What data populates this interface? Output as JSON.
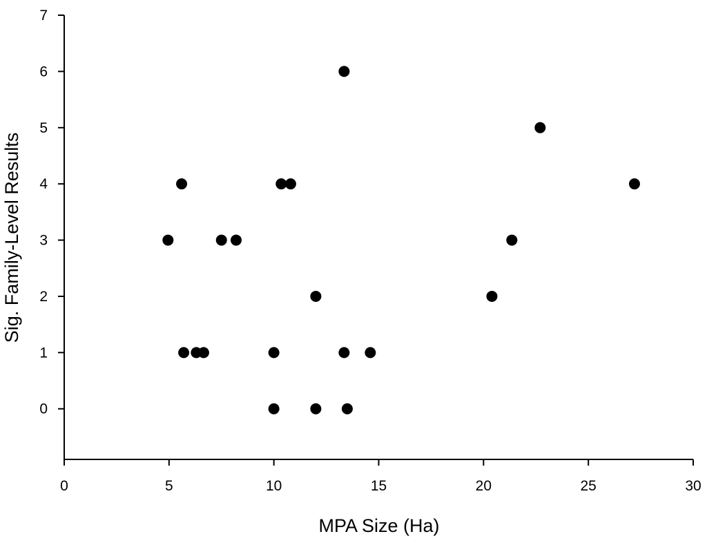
{
  "chart_data": {
    "type": "scatter",
    "title": "",
    "xlabel": "MPA Size (Ha)",
    "ylabel": "Sig. Family-Level Results",
    "xlim": [
      0,
      30
    ],
    "ylim": [
      -0.9,
      7
    ],
    "xticks": [
      0,
      5,
      10,
      15,
      20,
      25,
      30
    ],
    "yticks": [
      0,
      1,
      2,
      3,
      4,
      5,
      6,
      7
    ],
    "grid": false,
    "legend": "none",
    "marker_color": "#000000",
    "series": [
      {
        "points": [
          {
            "x": 4.95,
            "y": 3
          },
          {
            "x": 5.6,
            "y": 4
          },
          {
            "x": 5.7,
            "y": 1
          },
          {
            "x": 6.3,
            "y": 1
          },
          {
            "x": 6.65,
            "y": 1
          },
          {
            "x": 7.5,
            "y": 3
          },
          {
            "x": 8.2,
            "y": 3
          },
          {
            "x": 10.0,
            "y": 1
          },
          {
            "x": 10.0,
            "y": 0
          },
          {
            "x": 10.35,
            "y": 4
          },
          {
            "x": 10.8,
            "y": 4
          },
          {
            "x": 12.0,
            "y": 2
          },
          {
            "x": 12.0,
            "y": 0
          },
          {
            "x": 13.35,
            "y": 6
          },
          {
            "x": 13.35,
            "y": 1
          },
          {
            "x": 13.5,
            "y": 0
          },
          {
            "x": 14.6,
            "y": 1
          },
          {
            "x": 20.4,
            "y": 2
          },
          {
            "x": 21.35,
            "y": 3
          },
          {
            "x": 22.7,
            "y": 5
          },
          {
            "x": 27.2,
            "y": 4
          }
        ]
      }
    ]
  }
}
